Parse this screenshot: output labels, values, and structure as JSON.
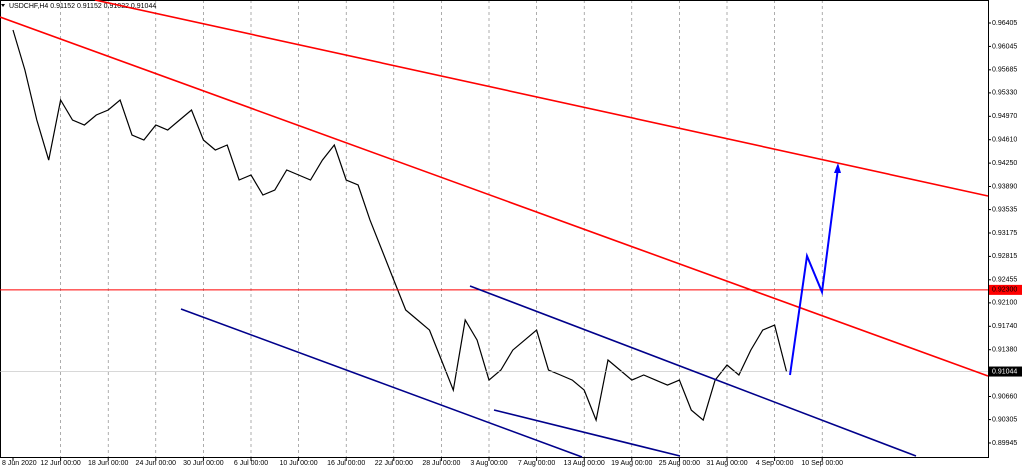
{
  "chart_data": {
    "type": "line",
    "title": "USDCHF,H4  0.91152 0.91152 0.91022 0.91044",
    "categories": [
      "8 Jun 2020",
      null,
      null,
      null,
      "12 Jun 00:00",
      null,
      null,
      null,
      "18 Jun 00:00",
      null,
      null,
      null,
      "24 Jun 00:00",
      null,
      null,
      null,
      "30 Jun 00:00",
      null,
      null,
      null,
      "6 Jul 00:00",
      null,
      null,
      null,
      "10 Jul 00:00",
      null,
      null,
      null,
      "16 Jul 00:00",
      null,
      null,
      null,
      "22 Jul 00:00",
      null,
      null,
      null,
      "28 Jul 00:00",
      null,
      null,
      null,
      "3 Aug 00:00",
      null,
      null,
      null,
      "7 Aug 00:00",
      null,
      null,
      null,
      "13 Aug 00:00",
      null,
      null,
      null,
      "19 Aug 00:00",
      null,
      null,
      null,
      "25 Aug 00:00",
      null,
      null,
      null,
      "31 Aug 00:00",
      null,
      null,
      null,
      "4 Sep 00:00",
      null,
      null,
      null,
      "10 Sep 00:00"
    ],
    "series": [
      {
        "name": "USDCHF,H4",
        "color": "#000000",
        "values": [
          0.96298,
          0.95682,
          0.94913,
          0.94297,
          0.95221,
          0.94913,
          0.94836,
          0.9499,
          0.95067,
          0.95221,
          0.94682,
          0.94605,
          0.94836,
          0.94759,
          0.94913,
          0.95067,
          0.94605,
          0.94451,
          0.94528,
          0.9399,
          0.94067,
          0.93759,
          0.93836,
          0.94144,
          0.94067,
          0.9399,
          0.94297,
          0.94528,
          0.9399,
          0.93913,
          0.93374,
          0.92913,
          0.92451,
          0.9199,
          0.91836,
          0.91682,
          0.91221,
          0.90759,
          0.91836,
          0.91528,
          0.90913,
          0.91067,
          0.91374,
          0.91528,
          0.91682,
          0.91067,
          0.9099,
          0.90913,
          0.90759,
          0.90297,
          0.91221,
          0.91067,
          0.90913,
          0.9099,
          0.90913,
          0.90836,
          0.90913,
          0.90451,
          0.90297,
          0.90913,
          0.91144,
          0.9099,
          0.91374,
          0.91682,
          0.91759,
          0.91044,
          null,
          null,
          null
        ]
      }
    ],
    "ylim": [
      0.89714,
      0.96759
    ],
    "yticks": [
      0.96405,
      0.96045,
      0.95685,
      {
        "value": 0.9533,
        "label": "0.95330"
      },
      {
        "value": 0.9497,
        "label": "0.94970"
      },
      {
        "value": 0.9461,
        "label": "0.94610"
      },
      {
        "value": 0.9425,
        "label": "0.94250"
      },
      {
        "value": 0.9389,
        "label": "0.93890"
      },
      0.93535,
      0.93175,
      0.92815,
      0.92455,
      {
        "value": 0.921,
        "label": "0.92100"
      },
      {
        "value": 0.9174,
        "label": "0.91740"
      },
      {
        "value": 0.9138,
        "label": "0.91380"
      },
      {
        "value": 0.9066,
        "label": "0.90660"
      },
      0.90305,
      0.89945
    ],
    "hline": {
      "value": 0.923,
      "label": "0.92300",
      "color": "#ff0000"
    },
    "last_price": 0.91044,
    "grid": true
  }
}
